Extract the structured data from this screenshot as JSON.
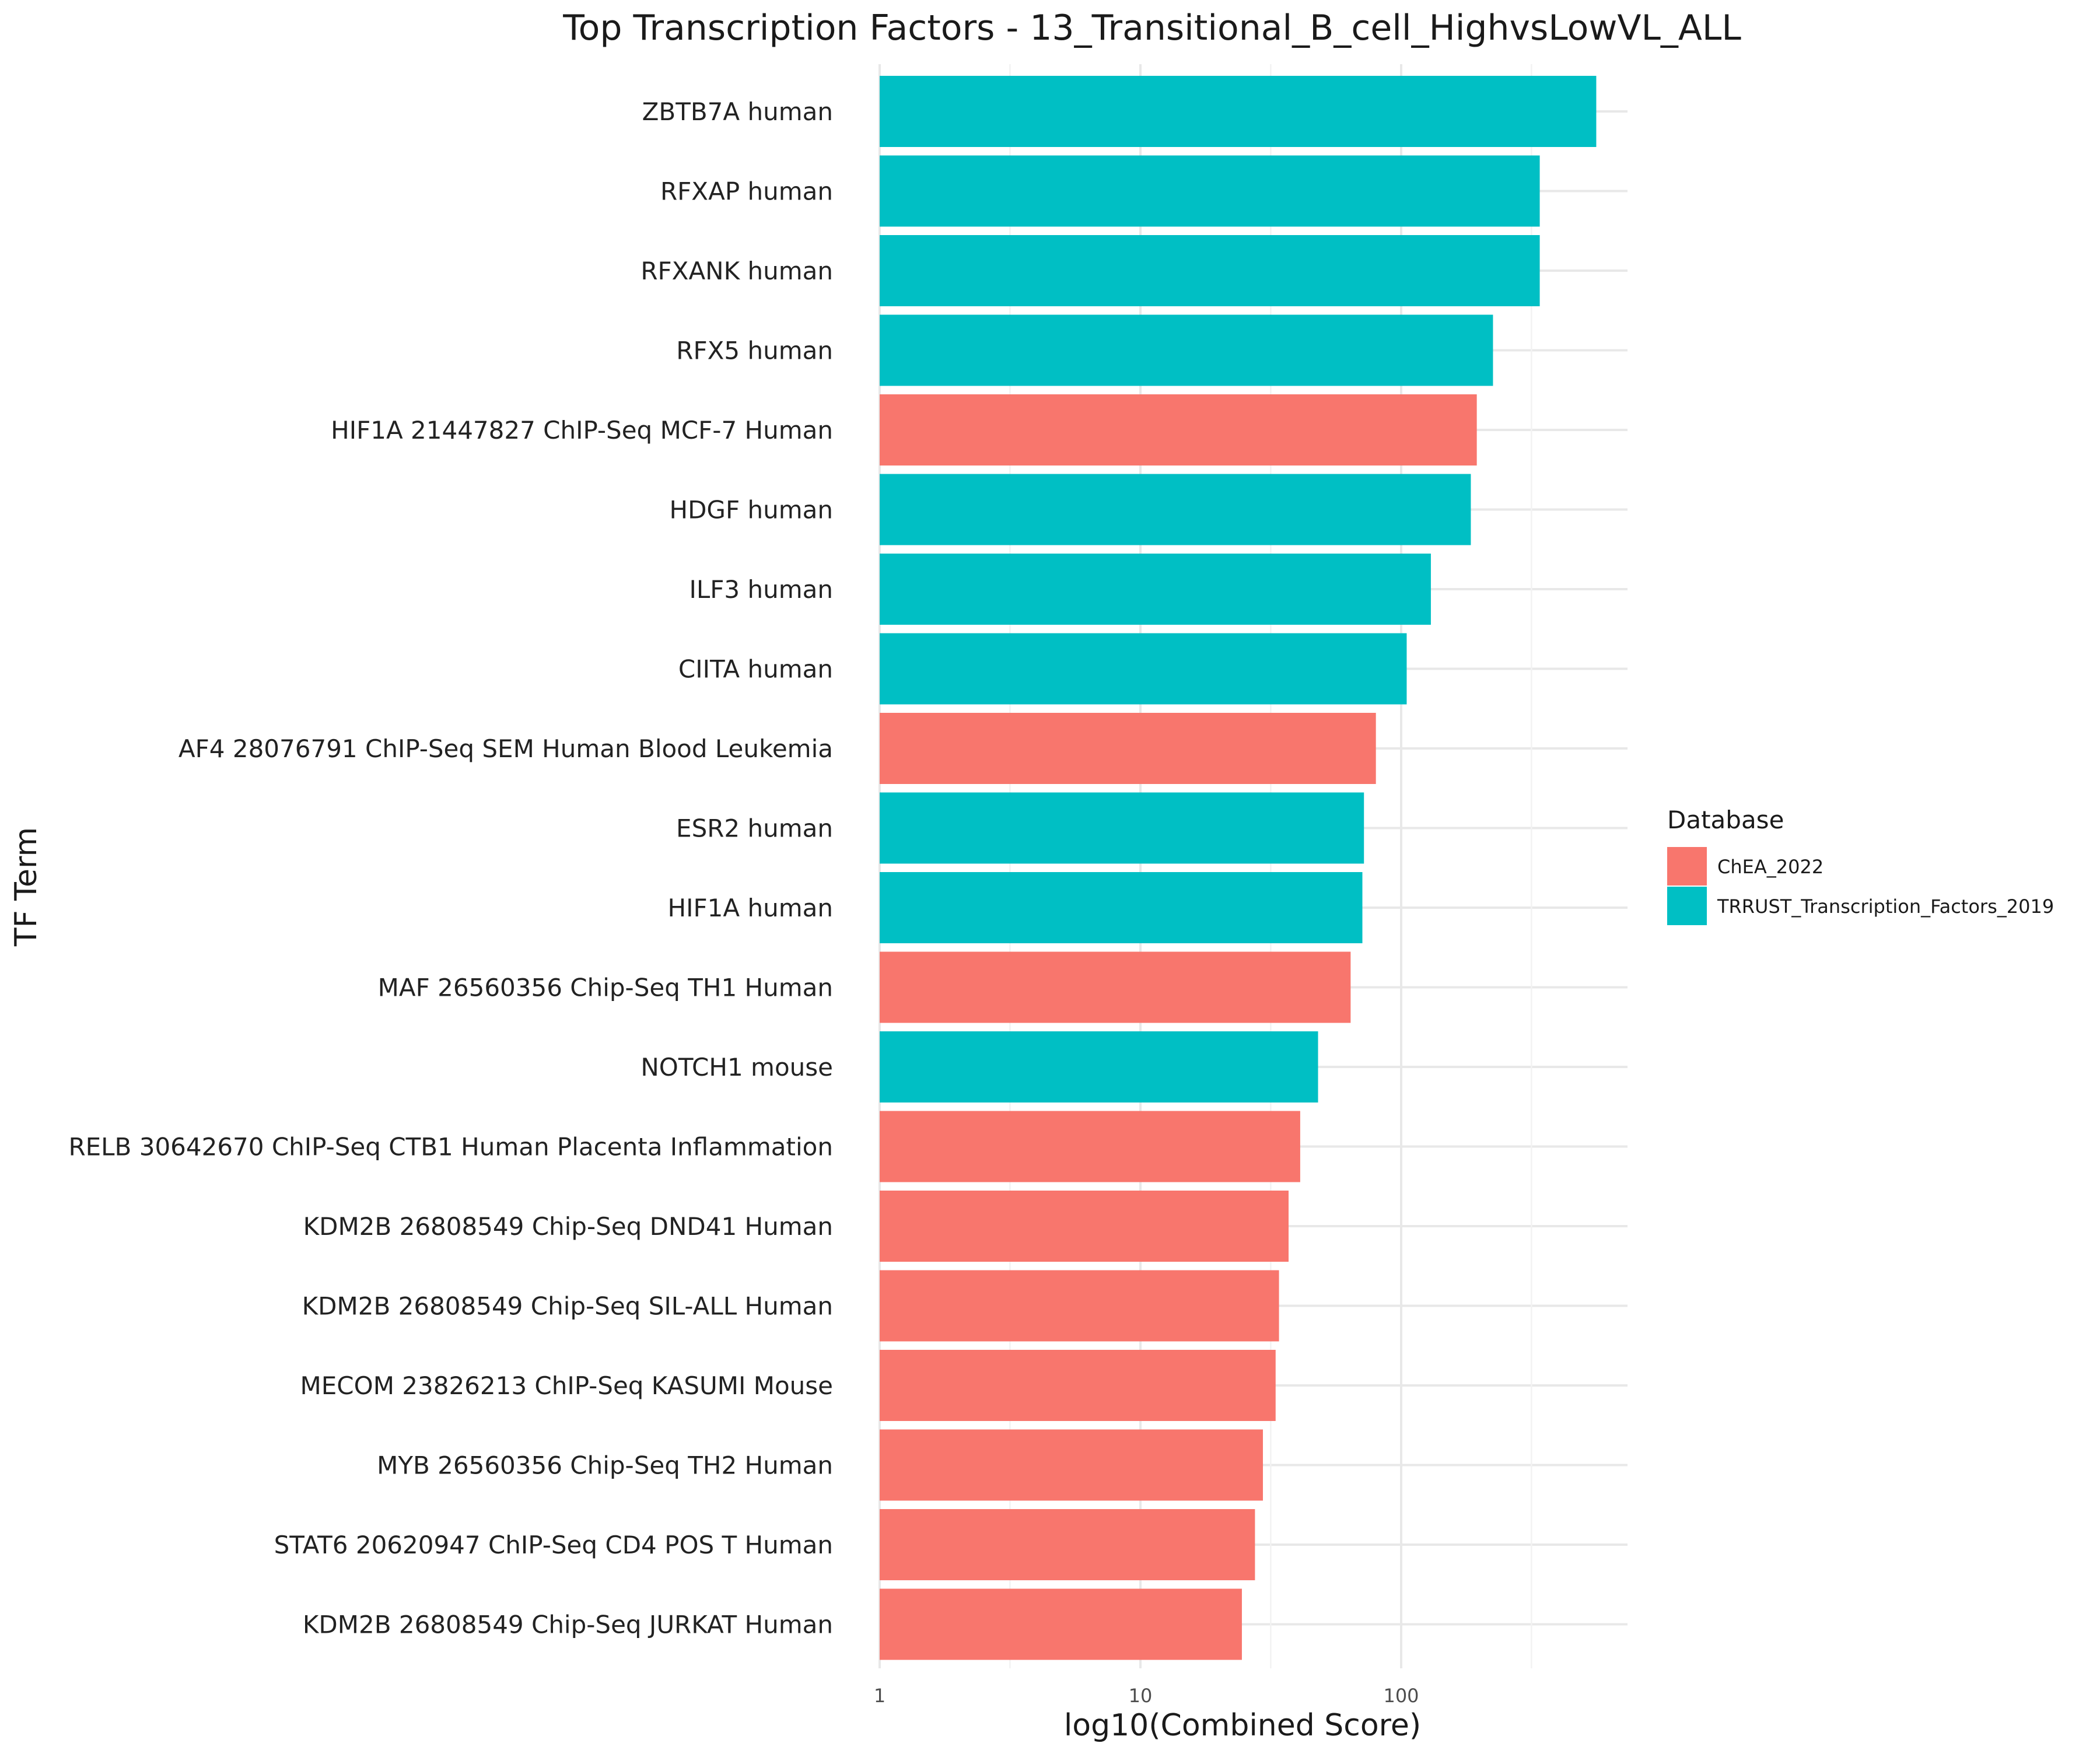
{
  "chart_data": {
    "type": "bar",
    "orientation": "horizontal",
    "title": "Top Transcription Factors - 13_Transitional_B_cell_HighvsLowVL_ALL",
    "xlabel": "log10(Combined Score)",
    "ylabel": "TF Term",
    "x_scale": "log10",
    "xlim": [
      1,
      700
    ],
    "x_ticks": [
      {
        "value": 1,
        "label": "1"
      },
      {
        "value": 10,
        "label": "10"
      },
      {
        "value": 100,
        "label": "100"
      }
    ],
    "minor_ticks": [
      3.16,
      31.6,
      316
    ],
    "grid": true,
    "legend": {
      "title": "Database",
      "placement": "right",
      "entries": [
        {
          "name": "ChEA_2022",
          "color": "#F8766D"
        },
        {
          "name": "TRRUST_Transcription_Factors_2019",
          "color": "#00BFC4"
        }
      ]
    },
    "bars": [
      {
        "term": "ZBTB7A human",
        "value": 560,
        "database": "TRRUST_Transcription_Factors_2019"
      },
      {
        "term": "RFXAP human",
        "value": 340,
        "database": "TRRUST_Transcription_Factors_2019"
      },
      {
        "term": "RFXANK human",
        "value": 340,
        "database": "TRRUST_Transcription_Factors_2019"
      },
      {
        "term": "RFX5 human",
        "value": 225,
        "database": "TRRUST_Transcription_Factors_2019"
      },
      {
        "term": "HIF1A 21447827 ChIP-Seq MCF-7 Human",
        "value": 195,
        "database": "ChEA_2022"
      },
      {
        "term": "HDGF human",
        "value": 185,
        "database": "TRRUST_Transcription_Factors_2019"
      },
      {
        "term": "ILF3 human",
        "value": 130,
        "database": "TRRUST_Transcription_Factors_2019"
      },
      {
        "term": "CIITA human",
        "value": 105,
        "database": "TRRUST_Transcription_Factors_2019"
      },
      {
        "term": "AF4 28076791 ChIP-Seq SEM Human Blood Leukemia",
        "value": 80,
        "database": "ChEA_2022"
      },
      {
        "term": "ESR2 human",
        "value": 72,
        "database": "TRRUST_Transcription_Factors_2019"
      },
      {
        "term": "HIF1A human",
        "value": 71,
        "database": "TRRUST_Transcription_Factors_2019"
      },
      {
        "term": "MAF 26560356 Chip-Seq TH1 Human",
        "value": 64,
        "database": "ChEA_2022"
      },
      {
        "term": "NOTCH1 mouse",
        "value": 48,
        "database": "TRRUST_Transcription_Factors_2019"
      },
      {
        "term": "RELB 30642670 ChIP-Seq CTB1 Human Placenta Inflammation",
        "value": 41,
        "database": "ChEA_2022"
      },
      {
        "term": "KDM2B 26808549 Chip-Seq DND41 Human",
        "value": 37,
        "database": "ChEA_2022"
      },
      {
        "term": "KDM2B 26808549 Chip-Seq SIL-ALL Human",
        "value": 34,
        "database": "ChEA_2022"
      },
      {
        "term": "MECOM 23826213 ChIP-Seq KASUMI Mouse",
        "value": 33,
        "database": "ChEA_2022"
      },
      {
        "term": "MYB 26560356 Chip-Seq TH2 Human",
        "value": 29.5,
        "database": "ChEA_2022"
      },
      {
        "term": "STAT6 20620947 ChIP-Seq CD4 POS T Human",
        "value": 27.5,
        "database": "ChEA_2022"
      },
      {
        "term": "KDM2B 26808549 Chip-Seq JURKAT Human",
        "value": 24.5,
        "database": "ChEA_2022"
      }
    ]
  }
}
